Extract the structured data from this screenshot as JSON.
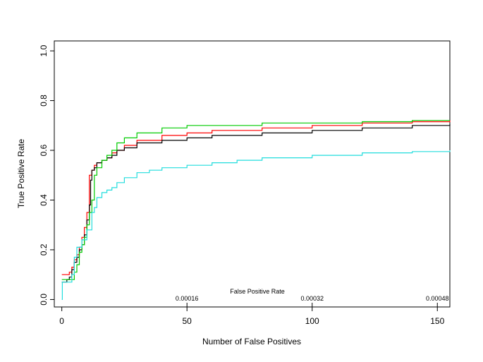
{
  "chart_data": {
    "type": "line",
    "title": "",
    "xlabel": "Number of False Positives",
    "ylabel": "True Positive Rate",
    "xlim": [
      -3,
      155
    ],
    "ylim": [
      -0.03,
      1.04
    ],
    "x_ticks": [
      "0",
      "50",
      "100",
      "150"
    ],
    "y_ticks": [
      "0.0",
      "0.2",
      "0.4",
      "0.6",
      "0.8",
      "1.0"
    ],
    "secondary_axis": {
      "label": "False Positive Rate",
      "ticks": [
        {
          "x": 50,
          "label": "0.00016"
        },
        {
          "x": 100,
          "label": "0.00032"
        },
        {
          "x": 150,
          "label": "0.00048"
        }
      ]
    },
    "grid": false,
    "legend": "none",
    "series": [
      {
        "color": "#ff0000",
        "points": [
          [
            0,
            0.1
          ],
          [
            2,
            0.1
          ],
          [
            3,
            0.11
          ],
          [
            4,
            0.13
          ],
          [
            5,
            0.16
          ],
          [
            6,
            0.18
          ],
          [
            7,
            0.21
          ],
          [
            8,
            0.25
          ],
          [
            9,
            0.29
          ],
          [
            10,
            0.35
          ],
          [
            11,
            0.5
          ],
          [
            12,
            0.52
          ],
          [
            13,
            0.54
          ],
          [
            14,
            0.55
          ],
          [
            16,
            0.56
          ],
          [
            18,
            0.57
          ],
          [
            20,
            0.59
          ],
          [
            22,
            0.6
          ],
          [
            25,
            0.62
          ],
          [
            30,
            0.64
          ],
          [
            40,
            0.66
          ],
          [
            50,
            0.67
          ],
          [
            60,
            0.68
          ],
          [
            80,
            0.69
          ],
          [
            100,
            0.7
          ],
          [
            120,
            0.71
          ],
          [
            140,
            0.715
          ],
          [
            155,
            0.72
          ]
        ]
      },
      {
        "color": "#000000",
        "points": [
          [
            0,
            0.07
          ],
          [
            2,
            0.08
          ],
          [
            3,
            0.09
          ],
          [
            4,
            0.12
          ],
          [
            5,
            0.15
          ],
          [
            6,
            0.17
          ],
          [
            7,
            0.2
          ],
          [
            8,
            0.22
          ],
          [
            9,
            0.26
          ],
          [
            10,
            0.32
          ],
          [
            11,
            0.38
          ],
          [
            11.5,
            0.48
          ],
          [
            12,
            0.52
          ],
          [
            13,
            0.53
          ],
          [
            14,
            0.55
          ],
          [
            16,
            0.56
          ],
          [
            18,
            0.57
          ],
          [
            20,
            0.58
          ],
          [
            22,
            0.6
          ],
          [
            25,
            0.61
          ],
          [
            30,
            0.63
          ],
          [
            40,
            0.64
          ],
          [
            50,
            0.65
          ],
          [
            60,
            0.66
          ],
          [
            80,
            0.67
          ],
          [
            100,
            0.68
          ],
          [
            120,
            0.69
          ],
          [
            140,
            0.7
          ],
          [
            155,
            0.705
          ]
        ]
      },
      {
        "color": "#00cc00",
        "points": [
          [
            0,
            0.08
          ],
          [
            3,
            0.08
          ],
          [
            5,
            0.11
          ],
          [
            6,
            0.14
          ],
          [
            7,
            0.19
          ],
          [
            8,
            0.22
          ],
          [
            9,
            0.25
          ],
          [
            10,
            0.3
          ],
          [
            11,
            0.35
          ],
          [
            12,
            0.4
          ],
          [
            13,
            0.5
          ],
          [
            14,
            0.53
          ],
          [
            16,
            0.56
          ],
          [
            18,
            0.58
          ],
          [
            20,
            0.6
          ],
          [
            22,
            0.63
          ],
          [
            25,
            0.65
          ],
          [
            30,
            0.67
          ],
          [
            40,
            0.69
          ],
          [
            50,
            0.7
          ],
          [
            70,
            0.7
          ],
          [
            80,
            0.71
          ],
          [
            100,
            0.71
          ],
          [
            120,
            0.715
          ],
          [
            140,
            0.72
          ],
          [
            155,
            0.72
          ]
        ]
      },
      {
        "color": "#22dddd",
        "points": [
          [
            0,
            0.0
          ],
          [
            0.2,
            0.07
          ],
          [
            3,
            0.07
          ],
          [
            4,
            0.1
          ],
          [
            5,
            0.17
          ],
          [
            6,
            0.21
          ],
          [
            8,
            0.24
          ],
          [
            10,
            0.28
          ],
          [
            12,
            0.35
          ],
          [
            13,
            0.37
          ],
          [
            14,
            0.41
          ],
          [
            16,
            0.43
          ],
          [
            18,
            0.44
          ],
          [
            20,
            0.45
          ],
          [
            22,
            0.47
          ],
          [
            25,
            0.49
          ],
          [
            30,
            0.51
          ],
          [
            35,
            0.52
          ],
          [
            40,
            0.53
          ],
          [
            50,
            0.54
          ],
          [
            60,
            0.55
          ],
          [
            70,
            0.56
          ],
          [
            80,
            0.57
          ],
          [
            100,
            0.58
          ],
          [
            120,
            0.59
          ],
          [
            140,
            0.595
          ],
          [
            155,
            0.6
          ]
        ]
      }
    ]
  }
}
